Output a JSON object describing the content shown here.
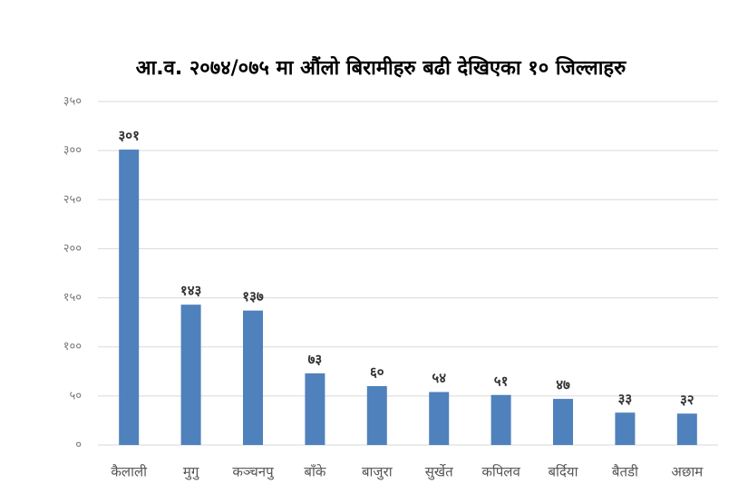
{
  "chart_data": {
    "type": "bar",
    "title": "आ.व. २०७४/०७५ मा औंलो बिरामीहरु बढी देखिएका १० जिल्लाहरु",
    "categories": [
      "कैलाली",
      "मुगु",
      "कञ्चनपु",
      "बाँके",
      "बाजुरा",
      "सुर्खेत",
      "कपिलव",
      "बर्दिया",
      "बैतडी",
      "अछाम"
    ],
    "values": [
      301,
      143,
      137,
      73,
      60,
      54,
      51,
      47,
      33,
      32
    ],
    "value_labels": [
      "३०१",
      "१४३",
      "१३७",
      "७३",
      "६०",
      "५४",
      "५१",
      "४७",
      "३३",
      "३२"
    ],
    "color": "#4f81bd",
    "ylim": [
      0,
      350
    ],
    "yticks": [
      {
        "value": 0,
        "label": "०"
      },
      {
        "value": 50,
        "label": "५०"
      },
      {
        "value": 100,
        "label": "१००"
      },
      {
        "value": 150,
        "label": "१५०"
      },
      {
        "value": 200,
        "label": "२००"
      },
      {
        "value": 250,
        "label": "२५०"
      },
      {
        "value": 300,
        "label": "३००"
      },
      {
        "value": 350,
        "label": "३५०"
      }
    ],
    "grid": true
  }
}
